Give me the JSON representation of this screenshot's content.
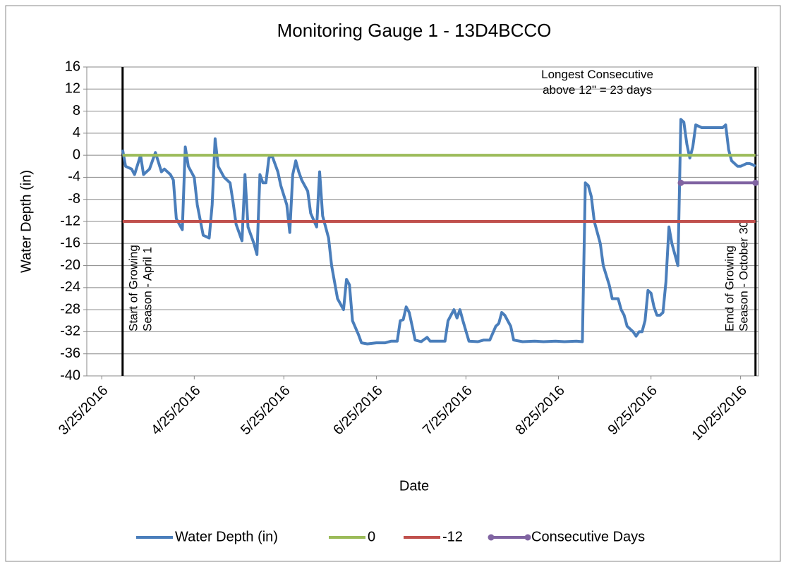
{
  "chart_data": {
    "type": "line",
    "title": "Monitoring Gauge 1 - 13D4BCCO",
    "xlabel": "Date",
    "ylabel": "Water Depth (in)",
    "xlim": [
      "3/20/2016",
      "10/31/2016"
    ],
    "xticks": [
      "3/25/2016",
      "4/25/2016",
      "5/25/2016",
      "6/25/2016",
      "7/25/2016",
      "8/25/2016",
      "9/25/2016",
      "10/25/2016"
    ],
    "ylim": [
      -40,
      16
    ],
    "yticks": [
      16,
      12,
      8,
      4,
      0,
      -4,
      -8,
      -12,
      -16,
      -20,
      -24,
      -28,
      -32,
      -36,
      -40
    ],
    "grid": true,
    "legend": "bottom",
    "series": [
      {
        "name": "Water Depth (in)",
        "color": "#4a7ebb",
        "x": [
          "4/1/2016",
          "4/2/2016",
          "4/4/2016",
          "4/5/2016",
          "4/7/2016",
          "4/8/2016",
          "4/10/2016",
          "4/12/2016",
          "4/14/2016",
          "4/15/2016",
          "4/17/2016",
          "4/18/2016",
          "4/19/2016",
          "4/21/2016",
          "4/22/2016",
          "4/23/2016",
          "4/25/2016",
          "4/26/2016",
          "4/28/2016",
          "4/30/2016",
          "5/1/2016",
          "5/2/2016",
          "5/3/2016",
          "5/5/2016",
          "5/7/2016",
          "5/8/2016",
          "5/9/2016",
          "5/11/2016",
          "5/12/2016",
          "5/13/2016",
          "5/15/2016",
          "5/16/2016",
          "5/17/2016",
          "5/18/2016",
          "5/19/2016",
          "5/20/2016",
          "5/21/2016",
          "5/23/2016",
          "5/24/2016",
          "5/26/2016",
          "5/27/2016",
          "5/28/2016",
          "5/29/2016",
          "5/30/2016",
          "5/31/2016",
          "6/2/2016",
          "6/3/2016",
          "6/5/2016",
          "6/6/2016",
          "6/7/2016",
          "6/9/2016",
          "6/10/2016",
          "6/12/2016",
          "6/14/2016",
          "6/15/2016",
          "6/16/2016",
          "6/17/2016",
          "6/19/2016",
          "6/20/2016",
          "6/22/2016",
          "6/25/2016",
          "6/28/2016",
          "6/30/2016",
          "7/2/2016",
          "7/3/2016",
          "7/4/2016",
          "7/5/2016",
          "7/6/2016",
          "7/7/2016",
          "7/8/2016",
          "7/10/2016",
          "7/12/2016",
          "7/13/2016",
          "7/16/2016",
          "7/18/2016",
          "7/19/2016",
          "7/21/2016",
          "7/22/2016",
          "7/23/2016",
          "7/24/2016",
          "7/26/2016",
          "7/29/2016",
          "7/31/2016",
          "8/2/2016",
          "8/4/2016",
          "8/5/2016",
          "8/6/2016",
          "8/7/2016",
          "8/9/2016",
          "8/10/2016",
          "8/13/2016",
          "8/17/2016",
          "8/20/2016",
          "8/24/2016",
          "8/27/2016",
          "8/31/2016",
          "9/2/2016",
          "9/3/2016",
          "9/4/2016",
          "9/5/2016",
          "9/6/2016",
          "9/8/2016",
          "9/9/2016",
          "9/11/2016",
          "9/12/2016",
          "9/14/2016",
          "9/15/2016",
          "9/16/2016",
          "9/17/2016",
          "9/19/2016",
          "9/20/2016",
          "9/21/2016",
          "9/22/2016",
          "9/23/2016",
          "9/24/2016",
          "9/25/2016",
          "9/26/2016",
          "9/27/2016",
          "9/28/2016",
          "9/29/2016",
          "9/30/2016",
          "10/1/2016",
          "10/2/2016",
          "10/3/2016",
          "10/4/2016",
          "10/5/2016",
          "10/6/2016",
          "10/7/2016",
          "10/8/2016",
          "10/9/2016",
          "10/10/2016",
          "10/12/2016",
          "10/15/2016",
          "10/19/2016",
          "10/20/2016",
          "10/21/2016",
          "10/22/2016",
          "10/24/2016",
          "10/25/2016",
          "10/27/2016",
          "10/28/2016",
          "10/29/2016",
          "10/30/2016"
        ],
        "values": [
          1,
          -2,
          -2.5,
          -3.5,
          0,
          -3.5,
          -2.5,
          0.5,
          -3,
          -2.5,
          -3.5,
          -4.5,
          -11.5,
          -13.5,
          1.5,
          -2,
          -4,
          -9,
          -14.5,
          -15,
          -9,
          3,
          -2,
          -4,
          -5,
          -8.5,
          -12.5,
          -15.5,
          -3.5,
          -13,
          -16,
          -18,
          -3.5,
          -5,
          -5,
          -0.5,
          0,
          -3,
          -5.5,
          -9,
          -14,
          -3.5,
          -1,
          -3,
          -4.5,
          -6.5,
          -10.5,
          -13,
          -3,
          -11,
          -15,
          -20,
          -26,
          -28,
          -22.5,
          -23.5,
          -30,
          -32.5,
          -34,
          -34.2,
          -34,
          -34,
          -33.7,
          -33.7,
          -30,
          -29.8,
          -27.5,
          -28.5,
          -31,
          -33.5,
          -33.8,
          -33,
          -33.7,
          -33.7,
          -33.7,
          -30,
          -28,
          -29.5,
          -28,
          -30,
          -33.7,
          -33.8,
          -33.5,
          -33.5,
          -31,
          -30.5,
          -28.5,
          -29,
          -31,
          -33.5,
          -33.8,
          -33.7,
          -33.8,
          -33.7,
          -33.8,
          -33.7,
          -33.8,
          -5,
          -5.5,
          -7.5,
          -12,
          -16,
          -20,
          -23.5,
          -26,
          -26,
          -28,
          -29,
          -31,
          -32,
          -32.8,
          -32,
          -32,
          -30,
          -24.5,
          -25,
          -27.5,
          -29,
          -29,
          -28.5,
          -23,
          -13,
          -16,
          -18,
          -20,
          6.5,
          6,
          2,
          -0.5,
          1.5,
          5.5,
          5,
          5,
          5,
          5.5,
          1,
          -1,
          -2,
          -2,
          -1.5,
          -1.5,
          -1.7,
          -2
        ]
      },
      {
        "name": "0",
        "color": "#9bbb59",
        "x": [
          "4/1/2016",
          "10/30/2016"
        ],
        "values": [
          0,
          0
        ]
      },
      {
        "name": "-12",
        "color": "#c0504d",
        "x": [
          "4/1/2016",
          "10/30/2016"
        ],
        "values": [
          -12,
          -12
        ]
      },
      {
        "name": "Consecutive Days",
        "color": "#8064a2",
        "markers": true,
        "x": [
          "10/5/2016",
          "10/30/2016"
        ],
        "values": [
          -5,
          -5
        ]
      }
    ],
    "vlines": [
      {
        "x": "4/1/2016",
        "label": [
          "Start of Growing",
          "Season - April 1"
        ]
      },
      {
        "x": "10/30/2016",
        "label": [
          "Emd of Growing",
          "Season - October 30"
        ]
      }
    ],
    "annotation": {
      "x": "9/7/2016",
      "y": 14.5,
      "label": [
        "Longest Consecutive",
        "above 12\" = 23 days"
      ]
    }
  }
}
